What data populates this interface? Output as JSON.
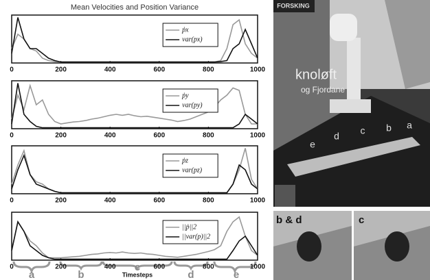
{
  "title": "Mean Velocities and Position Variance",
  "x_label": "Timesteps",
  "phase_labels": [
    "a",
    "b",
    "c",
    "d",
    "e"
  ],
  "photos": {
    "banner": "FORSKING",
    "headline": "knoløft",
    "subline": "og Fjordane",
    "phases": [
      "e",
      "d",
      "c",
      "b",
      "a"
    ],
    "inset_left": "b & d",
    "inset_right": "c"
  },
  "chart_data": [
    {
      "type": "line",
      "xlim": [
        0,
        1000
      ],
      "xticks": [
        0,
        200,
        400,
        600,
        800,
        1000
      ],
      "ylim": [
        0,
        1
      ],
      "x": [
        0,
        25,
        50,
        75,
        100,
        125,
        150,
        175,
        200,
        225,
        250,
        275,
        300,
        325,
        350,
        375,
        400,
        425,
        450,
        475,
        500,
        525,
        550,
        575,
        600,
        625,
        650,
        675,
        700,
        725,
        750,
        775,
        800,
        825,
        850,
        875,
        900,
        925,
        950,
        975,
        1000
      ],
      "series": [
        {
          "name": "ṗx",
          "color": "#999999",
          "values": [
            0.3,
            0.6,
            0.5,
            0.3,
            0.25,
            0.1,
            0.05,
            0.03,
            0.02,
            0.02,
            0.02,
            0.02,
            0.02,
            0.02,
            0.02,
            0.02,
            0.02,
            0.02,
            0.02,
            0.02,
            0.02,
            0.02,
            0.02,
            0.02,
            0.02,
            0.02,
            0.02,
            0.02,
            0.02,
            0.02,
            0.02,
            0.02,
            0.02,
            0.02,
            0.05,
            0.3,
            0.8,
            0.9,
            0.4,
            0.2,
            0.1
          ]
        },
        {
          "name": "var(px)",
          "color": "#111111",
          "values": [
            0.2,
            0.95,
            0.5,
            0.3,
            0.3,
            0.2,
            0.1,
            0.05,
            0.02,
            0.02,
            0.02,
            0.02,
            0.02,
            0.02,
            0.02,
            0.02,
            0.02,
            0.02,
            0.02,
            0.02,
            0.02,
            0.02,
            0.02,
            0.02,
            0.02,
            0.02,
            0.02,
            0.02,
            0.02,
            0.02,
            0.02,
            0.02,
            0.02,
            0.02,
            0.03,
            0.05,
            0.3,
            0.4,
            0.7,
            0.4,
            0.1
          ]
        }
      ]
    },
    {
      "type": "line",
      "xlim": [
        0,
        1000
      ],
      "xticks": [
        0,
        200,
        400,
        600,
        800,
        1000
      ],
      "ylim": [
        0,
        1
      ],
      "x": [
        0,
        25,
        50,
        75,
        100,
        125,
        150,
        175,
        200,
        225,
        250,
        275,
        300,
        325,
        350,
        375,
        400,
        425,
        450,
        475,
        500,
        525,
        550,
        575,
        600,
        625,
        650,
        675,
        700,
        725,
        750,
        775,
        800,
        825,
        850,
        875,
        900,
        925,
        950,
        975,
        1000
      ],
      "series": [
        {
          "name": "ṗy",
          "color": "#999999",
          "values": [
            0.2,
            0.7,
            0.4,
            0.9,
            0.5,
            0.6,
            0.3,
            0.15,
            0.1,
            0.12,
            0.14,
            0.15,
            0.17,
            0.2,
            0.22,
            0.25,
            0.28,
            0.3,
            0.28,
            0.3,
            0.27,
            0.25,
            0.26,
            0.24,
            0.22,
            0.2,
            0.18,
            0.15,
            0.17,
            0.2,
            0.25,
            0.3,
            0.35,
            0.45,
            0.6,
            0.7,
            0.85,
            0.8,
            0.3,
            0.1,
            0.1
          ]
        },
        {
          "name": "var(py)",
          "color": "#111111",
          "values": [
            0.1,
            0.95,
            0.3,
            0.15,
            0.05,
            0.02,
            0.02,
            0.02,
            0.02,
            0.02,
            0.02,
            0.02,
            0.02,
            0.02,
            0.02,
            0.02,
            0.02,
            0.02,
            0.02,
            0.02,
            0.02,
            0.02,
            0.02,
            0.02,
            0.02,
            0.02,
            0.02,
            0.02,
            0.02,
            0.02,
            0.02,
            0.02,
            0.02,
            0.02,
            0.02,
            0.02,
            0.02,
            0.1,
            0.3,
            0.2,
            0.1
          ]
        }
      ]
    },
    {
      "type": "line",
      "xlim": [
        0,
        1000
      ],
      "xticks": [
        0,
        200,
        400,
        600,
        800,
        1000
      ],
      "ylim": [
        0,
        1
      ],
      "x": [
        0,
        25,
        50,
        75,
        100,
        125,
        150,
        175,
        200,
        225,
        250,
        275,
        300,
        325,
        350,
        375,
        400,
        425,
        450,
        475,
        500,
        525,
        550,
        575,
        600,
        625,
        650,
        675,
        700,
        725,
        750,
        775,
        800,
        825,
        850,
        875,
        900,
        925,
        950,
        975,
        1000
      ],
      "series": [
        {
          "name": "ṗz",
          "color": "#999999",
          "values": [
            0.2,
            0.6,
            0.9,
            0.4,
            0.25,
            0.2,
            0.1,
            0.05,
            0.02,
            0.02,
            0.02,
            0.02,
            0.02,
            0.02,
            0.02,
            0.02,
            0.02,
            0.02,
            0.02,
            0.02,
            0.02,
            0.02,
            0.02,
            0.02,
            0.02,
            0.02,
            0.02,
            0.02,
            0.02,
            0.02,
            0.02,
            0.02,
            0.02,
            0.02,
            0.02,
            0.02,
            0.2,
            0.5,
            0.95,
            0.3,
            0.1
          ]
        },
        {
          "name": "var(pz)",
          "color": "#111111",
          "values": [
            0.1,
            0.5,
            0.8,
            0.4,
            0.2,
            0.15,
            0.1,
            0.05,
            0.02,
            0.02,
            0.02,
            0.02,
            0.02,
            0.02,
            0.02,
            0.02,
            0.02,
            0.02,
            0.02,
            0.02,
            0.02,
            0.02,
            0.02,
            0.02,
            0.02,
            0.02,
            0.02,
            0.02,
            0.02,
            0.02,
            0.02,
            0.02,
            0.02,
            0.02,
            0.02,
            0.02,
            0.2,
            0.6,
            0.5,
            0.2,
            0.1
          ]
        }
      ]
    },
    {
      "type": "line",
      "xlim": [
        0,
        1000
      ],
      "xticks": [
        0,
        200,
        400,
        600,
        800,
        1000
      ],
      "ylim": [
        0,
        1
      ],
      "x": [
        0,
        25,
        50,
        75,
        100,
        125,
        150,
        175,
        200,
        225,
        250,
        275,
        300,
        325,
        350,
        375,
        400,
        425,
        450,
        475,
        500,
        525,
        550,
        575,
        600,
        625,
        650,
        675,
        700,
        725,
        750,
        775,
        800,
        825,
        850,
        875,
        900,
        925,
        950,
        975,
        1000
      ],
      "series": [
        {
          "name": "||ṗ||2",
          "color": "#999999",
          "values": [
            0.2,
            0.8,
            0.6,
            0.4,
            0.3,
            0.15,
            0.05,
            0.05,
            0.05,
            0.06,
            0.07,
            0.08,
            0.1,
            0.12,
            0.13,
            0.15,
            0.16,
            0.15,
            0.17,
            0.15,
            0.14,
            0.15,
            0.13,
            0.12,
            0.1,
            0.08,
            0.07,
            0.06,
            0.08,
            0.1,
            0.12,
            0.15,
            0.18,
            0.22,
            0.3,
            0.6,
            0.8,
            0.9,
            0.5,
            0.2,
            0.1
          ]
        },
        {
          "name": "||var(p)||2",
          "color": "#111111",
          "values": [
            0.2,
            0.8,
            0.6,
            0.3,
            0.2,
            0.1,
            0.05,
            0.02,
            0.02,
            0.02,
            0.02,
            0.02,
            0.02,
            0.02,
            0.02,
            0.02,
            0.02,
            0.02,
            0.02,
            0.02,
            0.02,
            0.02,
            0.02,
            0.02,
            0.02,
            0.02,
            0.02,
            0.02,
            0.02,
            0.02,
            0.02,
            0.02,
            0.02,
            0.02,
            0.02,
            0.02,
            0.2,
            0.4,
            0.5,
            0.3,
            0.1
          ]
        }
      ]
    }
  ]
}
